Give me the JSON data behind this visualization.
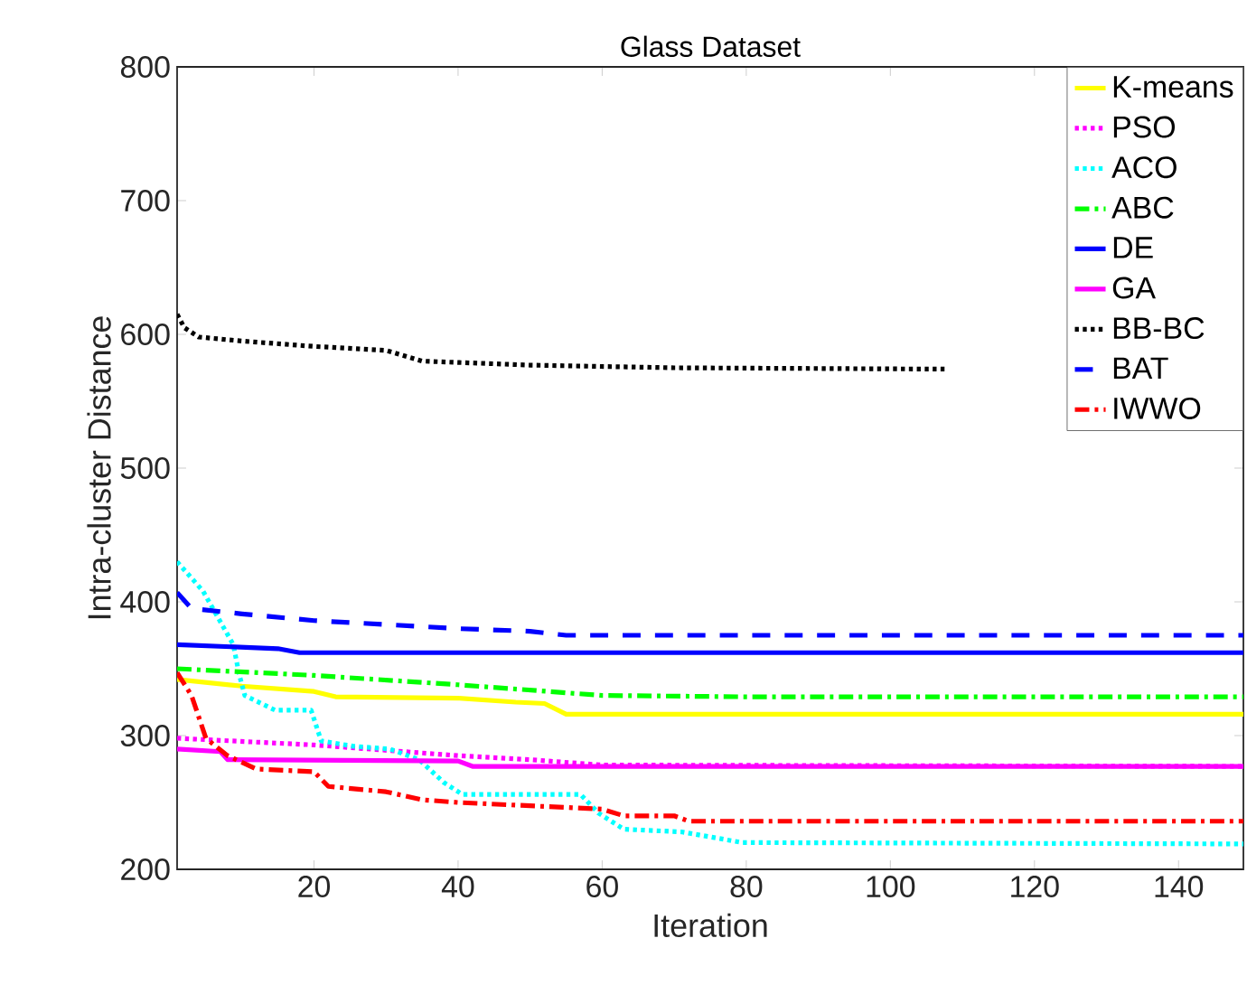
{
  "chart_data": {
    "type": "line",
    "title": "Glass Dataset",
    "xlabel": "Iteration",
    "ylabel": "Intra-cluster Distance",
    "xlim": [
      1,
      149
    ],
    "ylim": [
      200,
      800
    ],
    "xticks": [
      20,
      40,
      60,
      80,
      100,
      120,
      140
    ],
    "yticks": [
      200,
      300,
      400,
      500,
      600,
      700,
      800
    ],
    "grid": false,
    "legend": "top right",
    "marker": "none",
    "series": [
      {
        "name": "K-means",
        "color": "#ffff00",
        "line_style": "solid",
        "x": [
          1,
          10,
          20,
          23,
          40,
          48,
          52,
          55,
          149
        ],
        "values": [
          342,
          337,
          333,
          329,
          328,
          325,
          324,
          316,
          316
        ]
      },
      {
        "name": "PSO",
        "color": "#ff00ff",
        "line_style": "dotted",
        "x": [
          1,
          20,
          40,
          50,
          60,
          149
        ],
        "values": [
          298,
          293,
          285,
          282,
          278,
          277
        ]
      },
      {
        "name": "ACO",
        "color": "#00ffff",
        "line_style": "dotted",
        "x": [
          1,
          4.6,
          8.8,
          9.6,
          10.4,
          14.6,
          19.6,
          21,
          25.5,
          30.5,
          34.6,
          38,
          40.6,
          57,
          59.5,
          63,
          71,
          79.5,
          149
        ],
        "values": [
          430,
          408,
          368,
          346,
          330,
          319,
          319,
          296,
          292,
          290,
          282,
          265,
          256,
          256,
          242,
          230,
          228,
          220,
          219
        ]
      },
      {
        "name": "ABC",
        "color": "#00ff00",
        "line_style": "dashdot",
        "x": [
          1,
          20,
          40,
          60,
          80,
          149
        ],
        "values": [
          350,
          345,
          338,
          330,
          329,
          329
        ]
      },
      {
        "name": "DE",
        "color": "#0000ff",
        "line_style": "solid",
        "x": [
          1,
          15,
          18,
          149
        ],
        "values": [
          368,
          365,
          362,
          362
        ]
      },
      {
        "name": "GA",
        "color": "#ff00ff",
        "line_style": "solid",
        "x": [
          1,
          7,
          8,
          40,
          42,
          149
        ],
        "values": [
          290,
          288,
          282,
          281,
          277,
          277
        ]
      },
      {
        "name": "BB-BC",
        "color": "#000000",
        "line_style": "dotted",
        "x": [
          1,
          2,
          4,
          10,
          20,
          30,
          35,
          50,
          70,
          108
        ],
        "values": [
          615,
          605,
          598,
          595,
          591,
          588,
          580,
          577,
          575,
          574
        ]
      },
      {
        "name": "BAT",
        "color": "#0000ff",
        "line_style": "dashed",
        "x": [
          1,
          3,
          10,
          20,
          30,
          40,
          50,
          55,
          149
        ],
        "values": [
          407,
          395,
          391,
          386,
          383,
          380,
          378,
          375,
          375
        ]
      },
      {
        "name": "IWWO",
        "color": "#ff0000",
        "line_style": "dashdot",
        "x": [
          1,
          3,
          5,
          8,
          12,
          20,
          22,
          30,
          35,
          40,
          60,
          63,
          70,
          72,
          149
        ],
        "values": [
          347,
          330,
          298,
          285,
          275,
          273,
          262,
          258,
          252,
          250,
          245,
          240,
          240,
          236,
          236
        ]
      }
    ]
  }
}
